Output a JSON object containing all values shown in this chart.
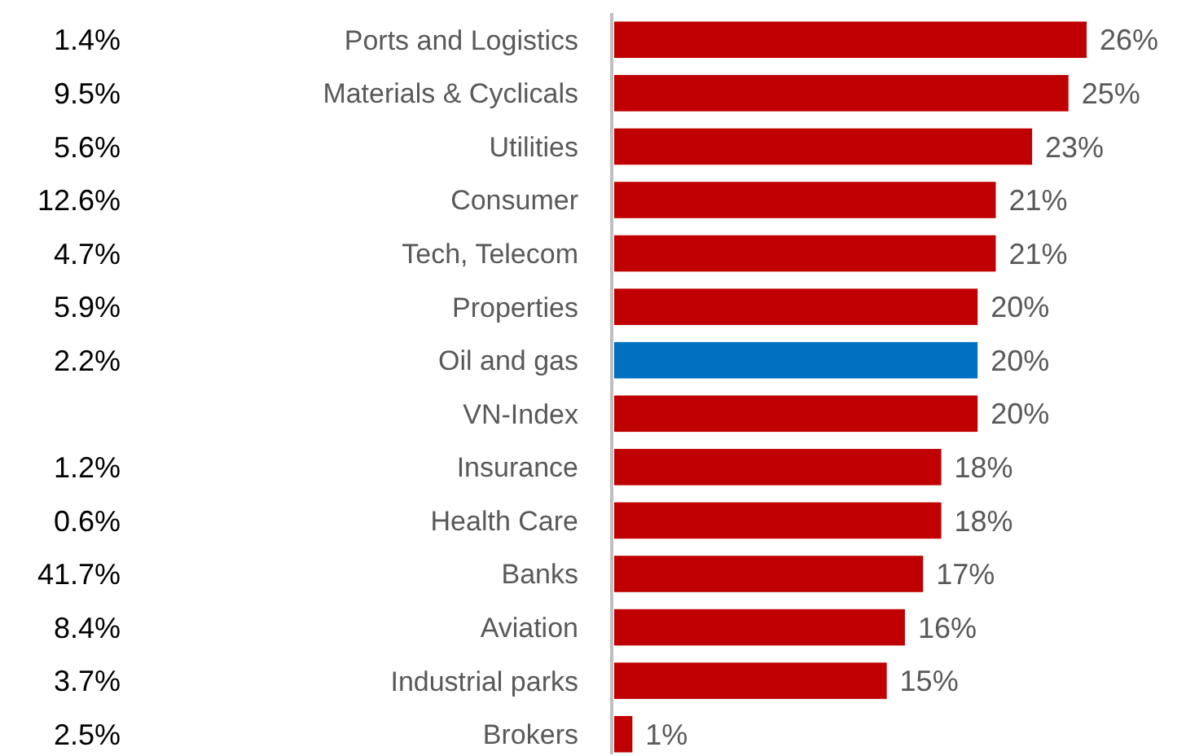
{
  "chart_data": {
    "type": "bar",
    "orientation": "horizontal",
    "categories": [
      "Ports and Logistics",
      "Materials & Cyclicals",
      "Utilities",
      "Consumer",
      "Tech, Telecom",
      "Properties",
      "Oil and gas",
      "VN-Index",
      "Insurance",
      "Health Care",
      "Banks",
      "Aviation",
      "Industrial parks",
      "Brokers"
    ],
    "values": [
      26,
      25,
      23,
      21,
      21,
      20,
      20,
      20,
      18,
      18,
      17,
      16,
      15,
      1
    ],
    "colors": [
      "#c00000",
      "#c00000",
      "#c00000",
      "#c00000",
      "#c00000",
      "#c00000",
      "#0070c0",
      "#c00000",
      "#c00000",
      "#c00000",
      "#c00000",
      "#c00000",
      "#c00000",
      "#c00000"
    ],
    "value_labels": [
      "26%",
      "25%",
      "23%",
      "21%",
      "21%",
      "20%",
      "20%",
      "20%",
      "18%",
      "18%",
      "17%",
      "16%",
      "15%",
      "1%"
    ],
    "annotations": [
      "1.4%",
      "9.5%",
      "5.6%",
      "12.6%",
      "4.7%",
      "5.9%",
      "2.2%",
      "1.2%",
      "0.6%",
      "41.7%",
      "8.4%",
      "3.7%",
      "2.5%"
    ]
  }
}
